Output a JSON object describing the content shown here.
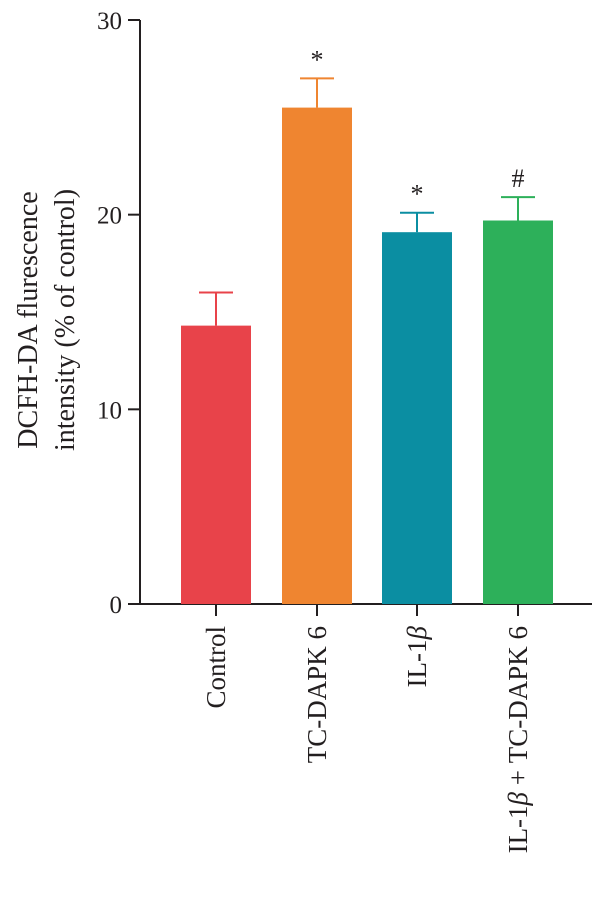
{
  "chart_data": {
    "type": "bar",
    "title": "",
    "xlabel": "",
    "ylabel": [
      "DCFH-DA flurescence",
      "intensity (% of control)"
    ],
    "ylim": [
      0,
      30
    ],
    "yticks": [
      0,
      10,
      20,
      30
    ],
    "grid": false,
    "categories": [
      {
        "parts": [
          {
            "t": "Control",
            "i": false
          }
        ]
      },
      {
        "parts": [
          {
            "t": "TC-DAPK 6",
            "i": false
          }
        ]
      },
      {
        "parts": [
          {
            "t": "IL-1",
            "i": false
          },
          {
            "t": "β",
            "i": true
          }
        ]
      },
      {
        "parts": [
          {
            "t": "IL-1",
            "i": false
          },
          {
            "t": "β",
            "i": true
          },
          {
            "t": " + TC-DAPK 6",
            "i": false
          }
        ]
      }
    ],
    "category_names": [
      "Control",
      "TC-DAPK 6",
      "IL-1β",
      "IL-1β + TC-DAPK 6"
    ],
    "values": [
      14.3,
      25.5,
      19.1,
      19.7
    ],
    "errors": [
      1.7,
      1.5,
      1.0,
      1.2
    ],
    "significance": [
      "",
      "*",
      "*",
      "#"
    ],
    "colors": [
      "#e8434a",
      "#ef8530",
      "#0b8ea2",
      "#2db05a"
    ],
    "axis_color": "#231f20"
  }
}
